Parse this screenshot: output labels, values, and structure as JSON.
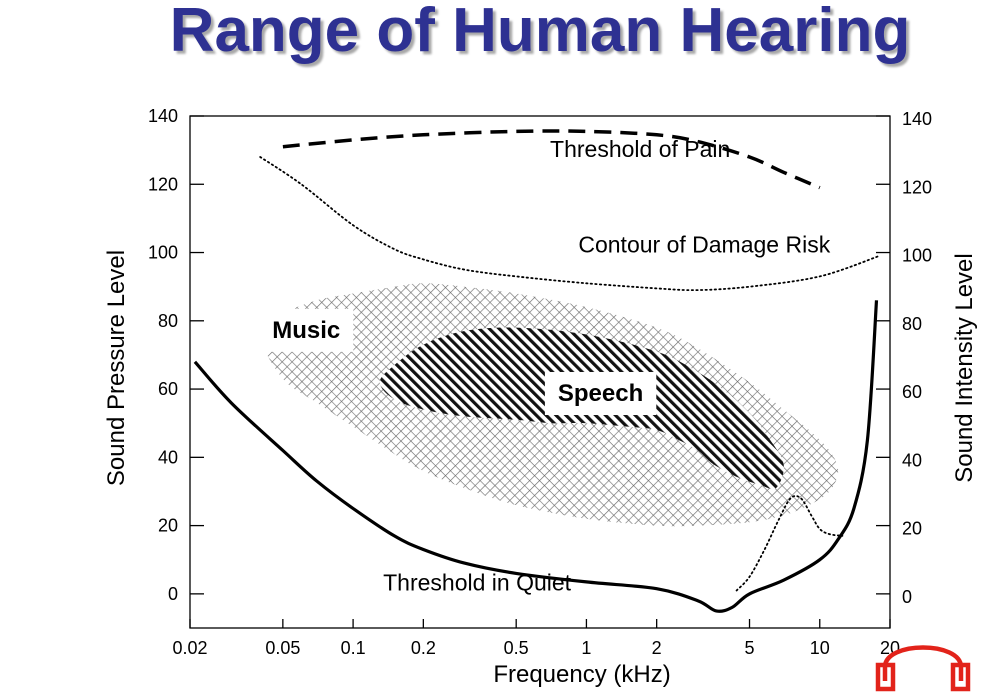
{
  "page": {
    "title": "Range of Human Hearing"
  },
  "chart_data": {
    "type": "line",
    "title": "Range of Human Hearing",
    "xlabel": "Frequency (kHz)",
    "ylabel": "Sound Pressure Level",
    "ylabel_right": "Sound Intensity Level",
    "x_scale": "log",
    "xlim": [
      0.02,
      20
    ],
    "ylim": [
      -10,
      140
    ],
    "x_ticks": [
      {
        "value": 0.02,
        "label": "0.02"
      },
      {
        "value": 0.05,
        "label": "0.05"
      },
      {
        "value": 0.1,
        "label": "0.1"
      },
      {
        "value": 0.2,
        "label": "0.2"
      },
      {
        "value": 0.5,
        "label": "0.5"
      },
      {
        "value": 1,
        "label": "1"
      },
      {
        "value": 2,
        "label": "2"
      },
      {
        "value": 5,
        "label": "5"
      },
      {
        "value": 10,
        "label": "10"
      },
      {
        "value": 20,
        "label": "20"
      }
    ],
    "y_ticks": [
      {
        "value": 0,
        "label": "0"
      },
      {
        "value": 20,
        "label": "20"
      },
      {
        "value": 40,
        "label": "40"
      },
      {
        "value": 60,
        "label": "60"
      },
      {
        "value": 80,
        "label": "80"
      },
      {
        "value": 100,
        "label": "100"
      },
      {
        "value": 120,
        "label": "120"
      },
      {
        "value": 140,
        "label": "140"
      }
    ],
    "series": [
      {
        "name": "Threshold of Pain",
        "style": "dashed",
        "x": [
          0.05,
          0.1,
          0.2,
          0.5,
          1,
          2,
          3,
          5,
          7,
          10
        ],
        "y": [
          131,
          133,
          134.5,
          135.5,
          135.5,
          134.5,
          132.5,
          128,
          123.5,
          119
        ]
      },
      {
        "name": "Contour of Damage Risk",
        "style": "dotted",
        "x": [
          0.04,
          0.06,
          0.1,
          0.15,
          0.2,
          0.3,
          0.5,
          1,
          2,
          3,
          5,
          10,
          18
        ],
        "y": [
          128,
          120,
          108,
          101,
          98,
          95,
          93,
          91,
          89.5,
          89,
          90,
          93,
          99
        ]
      },
      {
        "name": "Threshold in Quiet",
        "style": "solid",
        "x": [
          0.021,
          0.03,
          0.05,
          0.07,
          0.1,
          0.15,
          0.2,
          0.3,
          0.5,
          1,
          2,
          3,
          3.6,
          4.2,
          5,
          7,
          10,
          12,
          14,
          16,
          17.5
        ],
        "y": [
          68,
          56,
          42,
          33,
          25,
          17,
          13,
          9,
          6,
          3.5,
          1.5,
          -2,
          -5,
          -4,
          0,
          4,
          10,
          16,
          25,
          45,
          86
        ]
      },
      {
        "name": "",
        "style": "dotted",
        "x": [
          4.4,
          5,
          5.8,
          6.7,
          7.5,
          8.3,
          9.2,
          10,
          11,
          12.5
        ],
        "y": [
          1,
          5,
          13,
          22,
          28,
          28,
          23,
          19,
          17.5,
          17
        ]
      }
    ],
    "regions": [
      {
        "name": "Music",
        "pattern": "crosshatch",
        "boundary": {
          "x": [
            0.04,
            0.05,
            0.07,
            0.1,
            0.15,
            0.2,
            0.3,
            0.5,
            1,
            2,
            3,
            5,
            7,
            9,
            11,
            12,
            11,
            9,
            7,
            5,
            3,
            2,
            1,
            0.5,
            0.3,
            0.2,
            0.15,
            0.1,
            0.07,
            0.05,
            0.04
          ],
          "y": [
            76,
            82,
            86,
            88,
            90,
            91,
            90,
            88,
            84,
            78,
            72,
            62,
            54,
            48,
            42,
            36,
            30,
            26,
            23,
            21,
            20,
            20,
            22,
            26,
            31,
            36,
            41,
            49,
            56,
            63,
            76
          ]
        }
      },
      {
        "name": "Speech",
        "pattern": "hatch",
        "boundary": {
          "x": [
            0.13,
            0.15,
            0.2,
            0.3,
            0.5,
            1,
            2,
            3,
            4,
            5,
            6,
            7,
            6.5,
            5.5,
            4.5,
            3.5,
            3,
            2.5,
            2,
            1.5,
            1,
            0.7,
            0.5,
            0.3,
            0.2,
            0.15,
            0.13
          ],
          "y": [
            62,
            67,
            73,
            77,
            78,
            76,
            71,
            65,
            59,
            53,
            46,
            38,
            31,
            32,
            34,
            38,
            42,
            45,
            48,
            49,
            50,
            50,
            51,
            52,
            54,
            57,
            62
          ]
        }
      }
    ],
    "annotations": [
      {
        "text": "Threshold of Pain",
        "x": 1.7,
        "y": 128,
        "anchor": "middle",
        "bold": false
      },
      {
        "text": "Contour of Damage Risk",
        "x": 3.2,
        "y": 100,
        "anchor": "middle",
        "bold": false
      },
      {
        "text": "Threshold in Quiet",
        "x": 0.34,
        "y": 1,
        "anchor": "middle",
        "bold": false
      },
      {
        "text": "Music",
        "x": 0.063,
        "y": 75,
        "anchor": "middle",
        "bold": true,
        "boxed": true
      },
      {
        "text": "Speech",
        "x": 1.15,
        "y": 56.5,
        "anchor": "middle",
        "bold": true,
        "boxed": true
      }
    ],
    "grid": false
  },
  "colors": {
    "title": "#2e3192",
    "logo": "#e2231a"
  },
  "icons": {
    "logo": "headphones-icon"
  }
}
